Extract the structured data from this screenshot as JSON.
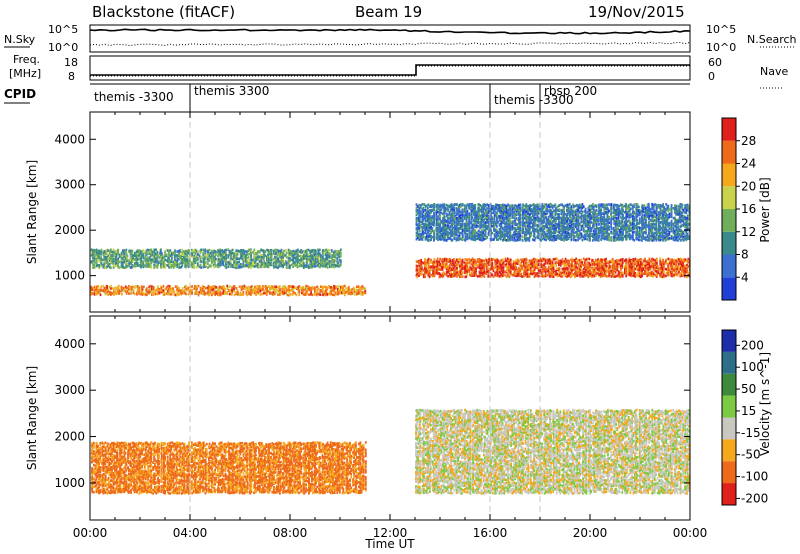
{
  "header": {
    "station": "Blackstone (fitACF)",
    "beam": "Beam 19",
    "date": "19/Nov/2015"
  },
  "status_panels": {
    "nsky_label": "N.Sky",
    "nsearch_label": "N.Search",
    "noise_tick_hi": "10^5",
    "noise_tick_lo": "10^0",
    "freq_label_top": "Freq.",
    "freq_label_unit": "[MHz]",
    "freq_ticks": [
      "18",
      "8"
    ],
    "nave_label": "Nave",
    "nave_ticks": [
      "60",
      "0"
    ],
    "cpid_label": "CPID",
    "cpid_segments": [
      {
        "label": "themis -3300",
        "start_hour": 0.0,
        "end_hour": 4.0
      },
      {
        "label": "themis 3300",
        "start_hour": 4.0,
        "end_hour": 16.0
      },
      {
        "label": "themis -3300",
        "start_hour": 16.0,
        "end_hour": 18.0
      },
      {
        "label": "rbsp 200",
        "start_hour": 18.0,
        "end_hour": 24.0
      }
    ]
  },
  "chart_data": [
    {
      "type": "heatmap",
      "name": "power",
      "ylabel": "Slant Range [km]",
      "yticks": [
        1000,
        2000,
        3000,
        4000
      ],
      "ylim": [
        200,
        4600
      ],
      "xlim": [
        0,
        24
      ],
      "xticks": [
        "00:00",
        "04:00",
        "08:00",
        "12:00",
        "16:00",
        "20:00",
        "00:00"
      ],
      "colorbar": {
        "label": "Power [dB]",
        "ticks": [
          "4",
          "8",
          "12",
          "16",
          "20",
          "24",
          "28"
        ],
        "colors": [
          "#1f3fd6",
          "#3b6fd0",
          "#3a8a8a",
          "#6fae5a",
          "#c8d24a",
          "#f5a81c",
          "#ee6a1b",
          "#e0201b"
        ]
      },
      "bands": [
        {
          "x": [
            0.0,
            11.0
          ],
          "y": [
            600,
            800
          ],
          "level": 24
        },
        {
          "x": [
            13.0,
            24.0
          ],
          "y": [
            1000,
            1400
          ],
          "level": 27
        },
        {
          "x": [
            0.0,
            10.0
          ],
          "y": [
            1200,
            1600
          ],
          "level": 12
        },
        {
          "x": [
            13.0,
            24.0
          ],
          "y": [
            1800,
            2600
          ],
          "level": 8
        }
      ]
    },
    {
      "type": "heatmap",
      "name": "velocity",
      "ylabel": "Slant Range [km]",
      "xlabel": "Time UT",
      "yticks": [
        1000,
        2000,
        3000,
        4000
      ],
      "ylim": [
        200,
        4600
      ],
      "xlim": [
        0,
        24
      ],
      "xticks": [
        "00:00",
        "04:00",
        "08:00",
        "12:00",
        "16:00",
        "20:00",
        "00:00"
      ],
      "colorbar": {
        "label": "Velocity [m s^-1]",
        "ticks": [
          "200",
          "100",
          "50",
          "15",
          "-15",
          "-50",
          "-100",
          "-200"
        ],
        "colors": [
          "#1c2fa8",
          "#2d6f8a",
          "#3c8a3c",
          "#7cc944",
          "#c8c8c0",
          "#f5a81c",
          "#ee6a1b",
          "#e0201b"
        ]
      },
      "bands": [
        {
          "x": [
            0.0,
            11.0
          ],
          "y": [
            800,
            1900
          ],
          "value": -60
        },
        {
          "x": [
            13.0,
            24.0
          ],
          "y": [
            800,
            2600
          ],
          "value": 0
        }
      ]
    }
  ]
}
